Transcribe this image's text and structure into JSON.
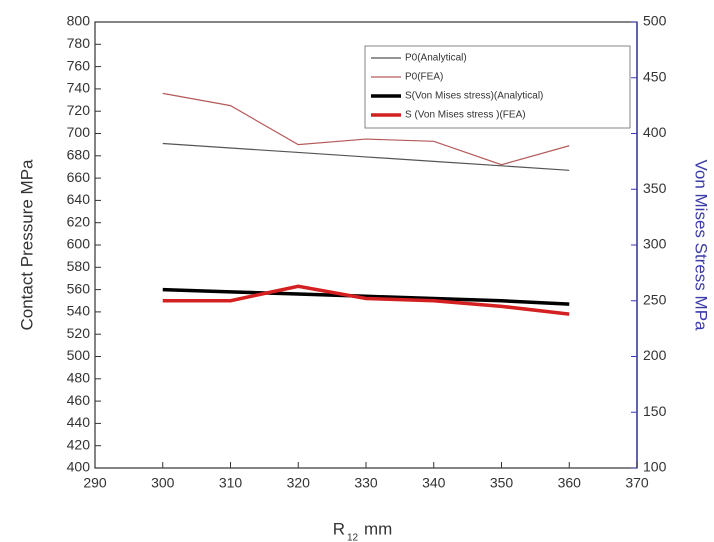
{
  "chart_data": {
    "type": "line",
    "xlabel": "R",
    "xlabel_subscript": "12",
    "xlabel_unit": "mm",
    "ylabel": "Contact Pressure MPa",
    "y2label": "Von Mises Stress MPa",
    "y2color": "#3b3ba8",
    "x": [
      300,
      310,
      320,
      330,
      340,
      350,
      360
    ],
    "xlim": [
      290,
      370
    ],
    "xticks": [
      290,
      300,
      310,
      320,
      330,
      340,
      350,
      360,
      370
    ],
    "ylim": [
      400,
      800
    ],
    "yticks": [
      400,
      420,
      440,
      460,
      480,
      500,
      520,
      540,
      560,
      580,
      600,
      620,
      640,
      660,
      680,
      700,
      720,
      740,
      760,
      780,
      800
    ],
    "y2lim": [
      100,
      500
    ],
    "y2ticks": [
      100,
      150,
      200,
      250,
      300,
      350,
      400,
      450,
      500
    ],
    "legend": "top-right",
    "series": [
      {
        "name": "P0(Analytical)",
        "color": "#555555",
        "width": 1.2,
        "values": [
          691,
          687,
          683,
          679,
          675,
          671,
          667
        ]
      },
      {
        "name": "P0(FEA)",
        "color": "#b55a5a",
        "width": 1.2,
        "values": [
          736,
          725,
          690,
          695,
          693,
          672,
          689
        ]
      },
      {
        "name": "S(Von Mises stress)(Analytical)",
        "color": "#000000",
        "width": 3.5,
        "axis": "y2",
        "values": [
          260,
          258,
          256,
          254,
          252,
          250,
          247
        ]
      },
      {
        "name": "S (Von Mises stress )(FEA)",
        "color": "#d42020",
        "width": 3.5,
        "axis": "y2",
        "values": [
          250,
          250,
          263,
          252,
          250,
          245,
          238
        ]
      }
    ]
  }
}
